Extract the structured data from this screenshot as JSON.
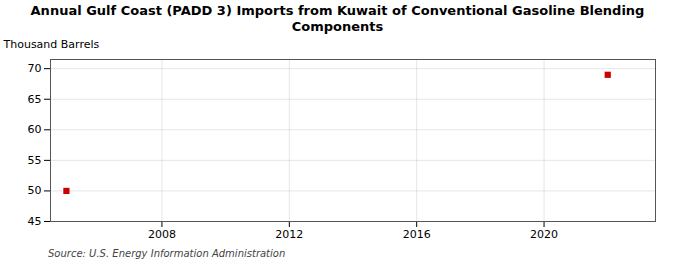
{
  "chart_data": {
    "type": "scatter",
    "title": "Annual Gulf Coast (PADD 3) Imports from Kuwait of Conventional Gasoline Blending\nComponents",
    "ylabel": "Thousand Barrels",
    "source": "Source: U.S. Energy Information Administration",
    "x": [
      2005,
      2022
    ],
    "values": [
      50,
      69
    ],
    "color": "#cc0000",
    "marker": "square",
    "xlim": [
      2004.5,
      2023.5
    ],
    "ylim": [
      45,
      71.5
    ],
    "xticks": [
      2008,
      2012,
      2016,
      2020
    ],
    "yticks": [
      45,
      50,
      55,
      60,
      65,
      70
    ],
    "grid": true
  }
}
